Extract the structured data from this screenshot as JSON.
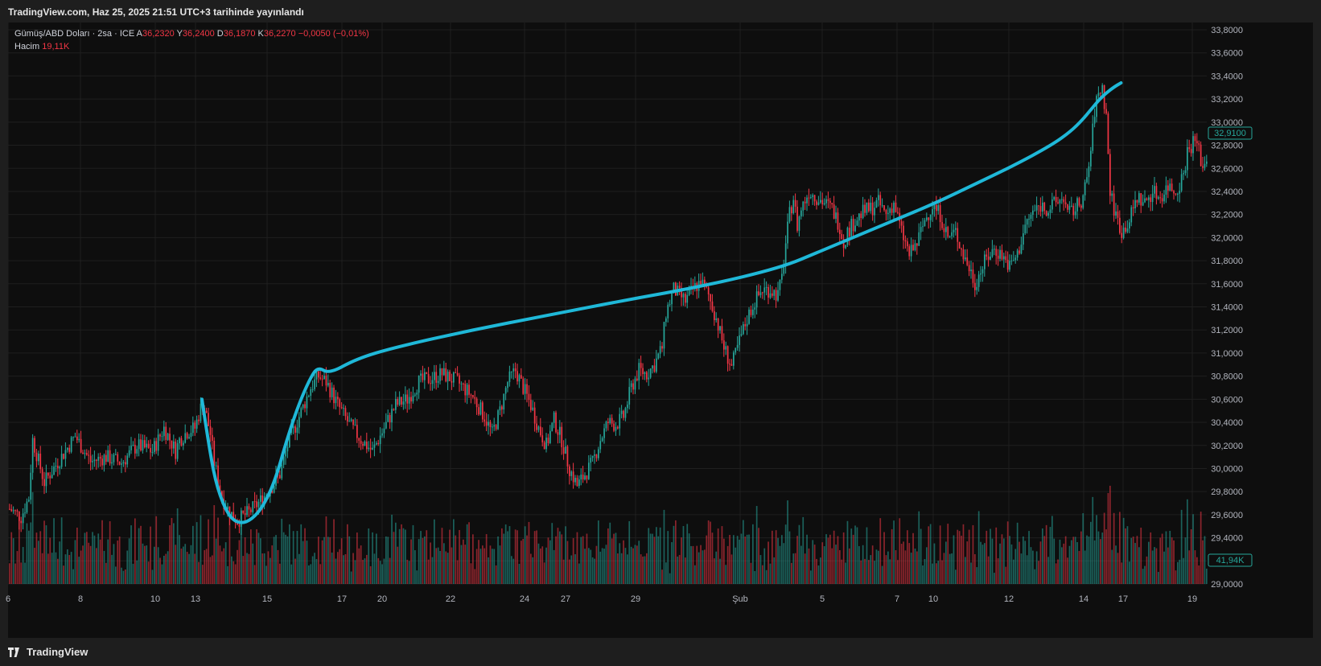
{
  "header": {
    "published": "TradingView.com, Haz 25, 2025 21:51 UTC+3 tarihinde yayınlandı"
  },
  "footer": {
    "brand": "TradingView"
  },
  "legend": {
    "symbol": "Gümüş/ABD Doları · 2sa · ICE",
    "open_label": "A",
    "open": "36,2320",
    "high_label": "Y",
    "high": "36,2400",
    "low_label": "D",
    "low": "36,1870",
    "close_label": "K",
    "close": "36,2270",
    "change": "−0,0050 (−0,01%)",
    "volume_label": "Hacim",
    "volume": "19,11K"
  },
  "colors": {
    "up": "#26a69a",
    "down": "#f23645",
    "curve": "#1fb8d8",
    "grid": "#1f1f1f",
    "axis_text": "#b2b5be"
  },
  "chart_data": {
    "type": "candlestick",
    "y_axis": {
      "min": 29.0,
      "max": 33.8,
      "ticks": [
        "29,0000",
        "29,2000",
        "29,4000",
        "29,6000",
        "29,8000",
        "30,0000",
        "30,2000",
        "30,4000",
        "30,6000",
        "30,8000",
        "31,0000",
        "31,2000",
        "31,4000",
        "31,6000",
        "31,8000",
        "32,0000",
        "32,2000",
        "32,4000",
        "32,6000",
        "32,8000",
        "33,0000",
        "33,2000",
        "33,4000",
        "33,6000",
        "33,8000"
      ]
    },
    "x_axis": {
      "ticks": [
        "6",
        "8",
        "10",
        "13",
        "15",
        "17",
        "20",
        "22",
        "24",
        "27",
        "29",
        "Şub",
        "5",
        "7",
        "10",
        "12",
        "14",
        "17",
        "19"
      ]
    },
    "price_badge": "32,9100",
    "volume_badge": "41,94K",
    "price_path": [
      [
        0,
        29.65
      ],
      [
        6,
        29.58
      ],
      [
        10,
        29.75
      ],
      [
        12,
        30.25
      ],
      [
        18,
        29.88
      ],
      [
        26,
        30.08
      ],
      [
        34,
        30.28
      ],
      [
        42,
        30.06
      ],
      [
        50,
        30.1
      ],
      [
        58,
        30.05
      ],
      [
        66,
        30.2
      ],
      [
        74,
        30.15
      ],
      [
        80,
        30.35
      ],
      [
        84,
        30.22
      ],
      [
        86,
        30.15
      ],
      [
        88,
        30.25
      ],
      [
        92,
        30.32
      ],
      [
        96,
        30.35
      ],
      [
        100,
        30.58
      ],
      [
        102,
        30.45
      ],
      [
        104,
        30.3
      ],
      [
        106,
        30.05
      ],
      [
        110,
        29.75
      ],
      [
        114,
        29.62
      ],
      [
        118,
        29.55
      ],
      [
        124,
        29.62
      ],
      [
        130,
        29.72
      ],
      [
        136,
        29.85
      ],
      [
        140,
        29.95
      ],
      [
        144,
        30.2
      ],
      [
        150,
        30.45
      ],
      [
        156,
        30.7
      ],
      [
        160,
        30.8
      ],
      [
        164,
        30.75
      ],
      [
        170,
        30.55
      ],
      [
        176,
        30.38
      ],
      [
        182,
        30.25
      ],
      [
        188,
        30.15
      ],
      [
        194,
        30.35
      ],
      [
        200,
        30.55
      ],
      [
        206,
        30.6
      ],
      [
        212,
        30.75
      ],
      [
        218,
        30.78
      ],
      [
        224,
        30.82
      ],
      [
        232,
        30.75
      ],
      [
        240,
        30.62
      ],
      [
        246,
        30.45
      ],
      [
        250,
        30.3
      ],
      [
        254,
        30.5
      ],
      [
        258,
        30.75
      ],
      [
        262,
        30.85
      ],
      [
        266,
        30.7
      ],
      [
        270,
        30.55
      ],
      [
        274,
        30.35
      ],
      [
        278,
        30.2
      ],
      [
        282,
        30.42
      ],
      [
        286,
        30.25
      ],
      [
        290,
        30.0
      ],
      [
        294,
        29.85
      ],
      [
        298,
        29.95
      ],
      [
        302,
        30.05
      ],
      [
        306,
        30.25
      ],
      [
        310,
        30.4
      ],
      [
        314,
        30.38
      ],
      [
        318,
        30.45
      ],
      [
        322,
        30.7
      ],
      [
        326,
        30.85
      ],
      [
        330,
        30.82
      ],
      [
        334,
        30.9
      ],
      [
        338,
        31.05
      ],
      [
        340,
        31.35
      ],
      [
        344,
        31.55
      ],
      [
        350,
        31.45
      ],
      [
        354,
        31.55
      ],
      [
        358,
        31.62
      ],
      [
        362,
        31.5
      ],
      [
        366,
        31.3
      ],
      [
        370,
        31.05
      ],
      [
        374,
        30.88
      ],
      [
        378,
        31.1
      ],
      [
        382,
        31.3
      ],
      [
        386,
        31.45
      ],
      [
        390,
        31.55
      ],
      [
        394,
        31.55
      ],
      [
        398,
        31.5
      ],
      [
        400,
        31.65
      ],
      [
        402,
        31.95
      ],
      [
        404,
        32.2
      ],
      [
        406,
        32.35
      ],
      [
        408,
        32.1
      ],
      [
        410,
        32.25
      ],
      [
        414,
        32.4
      ],
      [
        418,
        32.35
      ],
      [
        422,
        32.3
      ],
      [
        426,
        32.25
      ],
      [
        430,
        32.1
      ],
      [
        432,
        31.95
      ],
      [
        434,
        32.05
      ],
      [
        438,
        32.15
      ],
      [
        442,
        32.22
      ],
      [
        446,
        32.25
      ],
      [
        450,
        32.3
      ],
      [
        454,
        32.2
      ],
      [
        458,
        32.3
      ],
      [
        462,
        32.05
      ],
      [
        466,
        31.85
      ],
      [
        470,
        31.95
      ],
      [
        474,
        32.15
      ],
      [
        478,
        32.28
      ],
      [
        482,
        32.2
      ],
      [
        486,
        32.0
      ],
      [
        490,
        32.05
      ],
      [
        494,
        31.85
      ],
      [
        498,
        31.7
      ],
      [
        500,
        31.6
      ],
      [
        502,
        31.68
      ],
      [
        506,
        31.82
      ],
      [
        510,
        31.9
      ],
      [
        514,
        31.85
      ],
      [
        518,
        31.75
      ],
      [
        522,
        31.85
      ],
      [
        526,
        32.1
      ],
      [
        530,
        32.22
      ],
      [
        534,
        32.28
      ],
      [
        538,
        32.25
      ],
      [
        542,
        32.3
      ],
      [
        546,
        32.35
      ],
      [
        548,
        32.2
      ],
      [
        552,
        32.25
      ],
      [
        556,
        32.35
      ],
      [
        558,
        32.5
      ],
      [
        560,
        32.75
      ],
      [
        562,
        33.1
      ],
      [
        564,
        33.25
      ],
      [
        566,
        33.3
      ],
      [
        568,
        33.05
      ],
      [
        570,
        32.4
      ],
      [
        572,
        32.25
      ],
      [
        576,
        32.05
      ],
      [
        580,
        32.15
      ],
      [
        584,
        32.35
      ],
      [
        588,
        32.3
      ],
      [
        592,
        32.4
      ],
      [
        596,
        32.35
      ],
      [
        600,
        32.45
      ],
      [
        604,
        32.4
      ],
      [
        608,
        32.55
      ],
      [
        610,
        32.75
      ],
      [
        614,
        32.85
      ],
      [
        616,
        32.75
      ],
      [
        618,
        32.6
      ],
      [
        620,
        32.7
      ]
    ],
    "curve_points": [
      [
        100,
        30.6
      ],
      [
        104,
        30.15
      ],
      [
        108,
        29.82
      ],
      [
        114,
        29.58
      ],
      [
        120,
        29.52
      ],
      [
        126,
        29.56
      ],
      [
        132,
        29.68
      ],
      [
        138,
        29.9
      ],
      [
        144,
        30.25
      ],
      [
        150,
        30.55
      ],
      [
        156,
        30.78
      ],
      [
        160,
        30.88
      ],
      [
        166,
        30.82
      ],
      [
        180,
        30.95
      ],
      [
        200,
        31.05
      ],
      [
        240,
        31.2
      ],
      [
        280,
        31.33
      ],
      [
        320,
        31.46
      ],
      [
        360,
        31.58
      ],
      [
        400,
        31.74
      ],
      [
        420,
        31.88
      ],
      [
        440,
        32.02
      ],
      [
        460,
        32.16
      ],
      [
        480,
        32.3
      ],
      [
        500,
        32.46
      ],
      [
        520,
        32.62
      ],
      [
        540,
        32.8
      ],
      [
        550,
        32.92
      ],
      [
        556,
        33.02
      ],
      [
        560,
        33.1
      ],
      [
        566,
        33.22
      ],
      [
        572,
        33.3
      ],
      [
        576,
        33.34
      ]
    ]
  }
}
